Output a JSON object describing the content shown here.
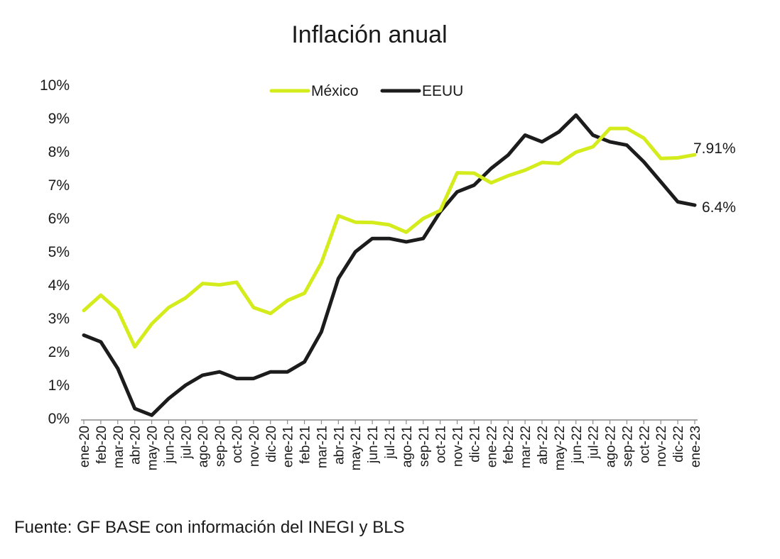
{
  "chart_data": {
    "type": "line",
    "title": "Inflación anual",
    "source": "Fuente: GF BASE con información del INEGI y BLS",
    "ylim": [
      0,
      10
    ],
    "y_ticks": [
      "0%",
      "1%",
      "2%",
      "3%",
      "4%",
      "5%",
      "6%",
      "7%",
      "8%",
      "9%",
      "10%"
    ],
    "grid": false,
    "legend_position": "top",
    "categories": [
      "ene-20",
      "feb-20",
      "mar-20",
      "abr-20",
      "may-20",
      "jun-20",
      "jul-20",
      "ago-20",
      "sep-20",
      "oct-20",
      "nov-20",
      "dic-20",
      "ene-21",
      "feb-21",
      "mar-21",
      "abr-21",
      "may-21",
      "jun-21",
      "jul-21",
      "ago-21",
      "sep-21",
      "oct-21",
      "nov-21",
      "dic-21",
      "ene-22",
      "feb-22",
      "mar-22",
      "abr-22",
      "may-22",
      "jun-22",
      "jul-22",
      "ago-22",
      "sep-22",
      "oct-22",
      "nov-22",
      "dic-22",
      "ene-23"
    ],
    "series": [
      {
        "name": "México",
        "color": "#d4ec1c",
        "values": [
          3.24,
          3.7,
          3.25,
          2.15,
          2.84,
          3.33,
          3.62,
          4.05,
          4.01,
          4.09,
          3.33,
          3.15,
          3.54,
          3.76,
          4.67,
          6.08,
          5.89,
          5.88,
          5.81,
          5.59,
          6.0,
          6.24,
          7.37,
          7.36,
          7.07,
          7.28,
          7.45,
          7.68,
          7.65,
          7.99,
          8.15,
          8.7,
          8.7,
          8.41,
          7.8,
          7.82,
          7.91
        ],
        "end_label": "7.91%"
      },
      {
        "name": "EEUU",
        "color": "#1c1c1c",
        "values": [
          2.5,
          2.3,
          1.5,
          0.3,
          0.1,
          0.6,
          1.0,
          1.3,
          1.4,
          1.2,
          1.2,
          1.4,
          1.4,
          1.7,
          2.6,
          4.2,
          5.0,
          5.4,
          5.4,
          5.3,
          5.4,
          6.2,
          6.8,
          7.0,
          7.5,
          7.9,
          8.5,
          8.3,
          8.6,
          9.1,
          8.5,
          8.3,
          8.2,
          7.7,
          7.1,
          6.5,
          6.4
        ],
        "end_label": "6.4%"
      }
    ]
  }
}
